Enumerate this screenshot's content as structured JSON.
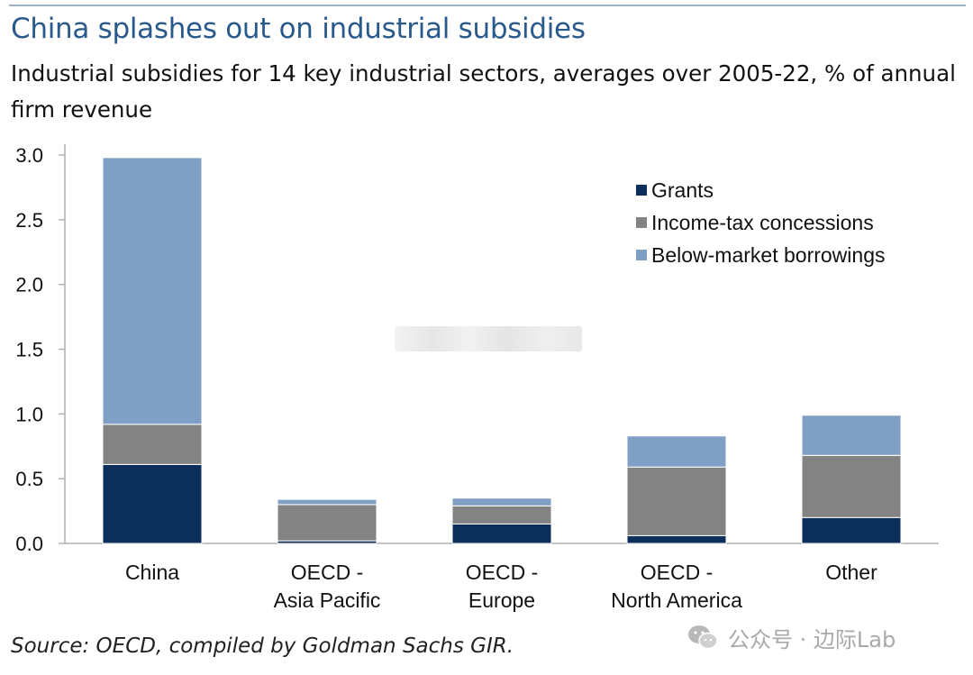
{
  "title": "China splashes out on industrial subsidies",
  "subtitle": "Industrial subsidies for 14 key industrial sectors, averages over 2005-22, % of annual firm revenue",
  "source": "Source: OECD, compiled by Goldman Sachs GIR.",
  "watermark": {
    "text": "公众号 · 边际Lab",
    "icon": "wechat-icon"
  },
  "colors": {
    "grants": "#0b2f5a",
    "income_tax": "#838383",
    "borrowings": "#7f9fc4",
    "axis": "#b0b0b0",
    "title": "#2a5a8c"
  },
  "chart_data": {
    "type": "bar",
    "stacked": true,
    "title": "China splashes out on industrial subsidies",
    "ylabel": "% of annual firm revenue",
    "ylim": [
      0,
      3.0
    ],
    "yticks": [
      "0.0",
      "0.5",
      "1.0",
      "1.5",
      "2.0",
      "2.5",
      "3.0"
    ],
    "categories": [
      [
        "China"
      ],
      [
        "OECD -",
        "Asia Pacific"
      ],
      [
        "OECD -",
        "Europe"
      ],
      [
        "OECD -",
        "North America"
      ],
      [
        "Other"
      ]
    ],
    "series": [
      {
        "name": "Grants",
        "color": "#0b2f5a",
        "values": [
          0.61,
          0.02,
          0.15,
          0.06,
          0.2
        ]
      },
      {
        "name": "Income-tax concessions",
        "color": "#838383",
        "values": [
          0.31,
          0.28,
          0.14,
          0.53,
          0.48
        ]
      },
      {
        "name": "Below-market borrowings",
        "color": "#7f9fc4",
        "values": [
          2.06,
          0.04,
          0.06,
          0.24,
          0.31
        ]
      }
    ],
    "legend_position": "top-right"
  }
}
